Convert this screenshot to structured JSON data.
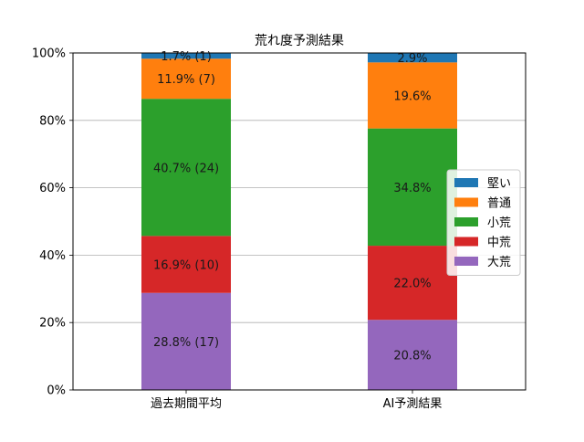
{
  "chart_data": {
    "type": "bar",
    "stacked": true,
    "title": "荒れ度予測結果",
    "xlabel": "",
    "ylabel": "",
    "categories": [
      "過去期間平均",
      "AI予測結果"
    ],
    "ylim": [
      0,
      100
    ],
    "y_unit": "%",
    "yticks": [
      "0%",
      "20%",
      "40%",
      "60%",
      "80%",
      "100%"
    ],
    "grid": "horizontal",
    "legend_position": "right",
    "series": [
      {
        "name": "大荒",
        "color": "#9467bd",
        "values": [
          28.8,
          20.8
        ],
        "labels": [
          "28.8% (17)",
          "20.8%"
        ]
      },
      {
        "name": "中荒",
        "color": "#d62728",
        "values": [
          16.9,
          22.0
        ],
        "labels": [
          "16.9% (10)",
          "22.0%"
        ]
      },
      {
        "name": "小荒",
        "color": "#2ca02c",
        "values": [
          40.7,
          34.8
        ],
        "labels": [
          "40.7% (24)",
          "34.8%"
        ]
      },
      {
        "name": "普通",
        "color": "#ff7f0e",
        "values": [
          11.9,
          19.6
        ],
        "labels": [
          "11.9% (7)",
          "19.6%"
        ]
      },
      {
        "name": "堅い",
        "color": "#1f77b4",
        "values": [
          1.7,
          2.9
        ],
        "labels": [
          "1.7% (1)",
          "2.9%"
        ]
      }
    ],
    "legend_order": [
      "堅い",
      "普通",
      "小荒",
      "中荒",
      "大荒"
    ]
  }
}
